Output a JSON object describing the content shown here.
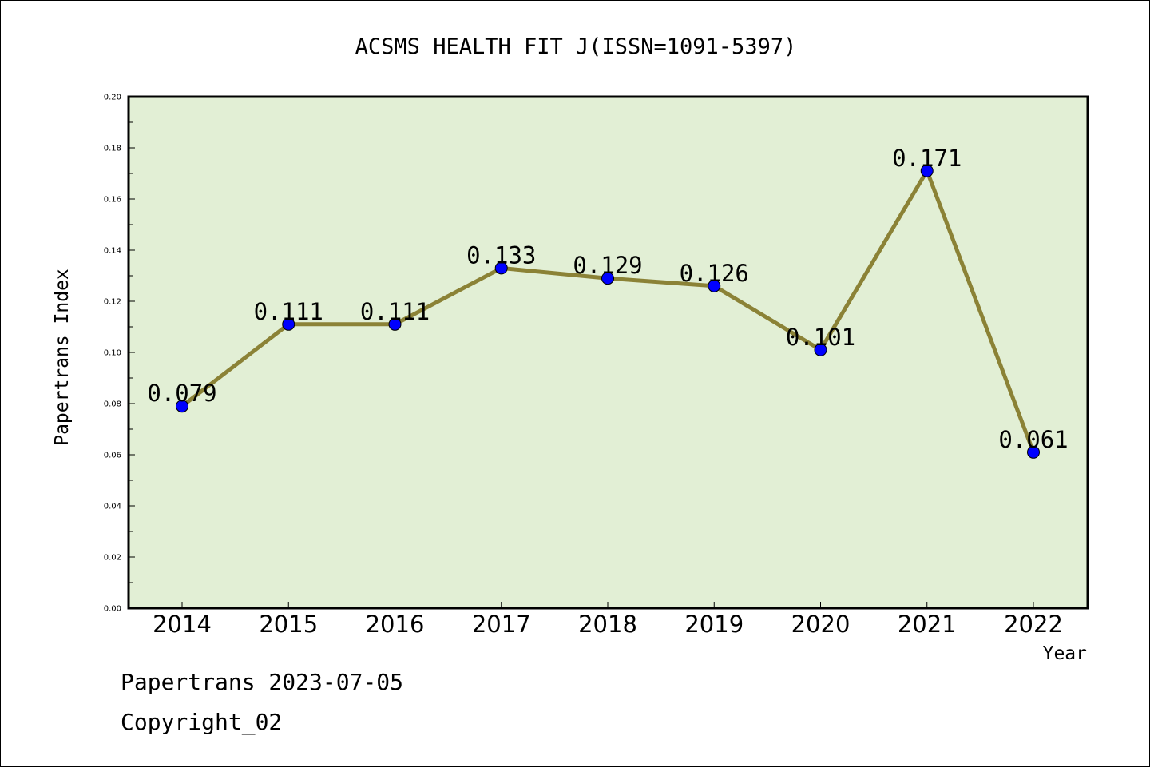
{
  "chart_data": {
    "type": "line",
    "title": "ACSMS HEALTH FIT J(ISSN=1091-5397)",
    "xlabel": "Year",
    "ylabel": "Papertrans Index",
    "categories": [
      "2014",
      "2015",
      "2016",
      "2017",
      "2018",
      "2019",
      "2020",
      "2021",
      "2022"
    ],
    "values": [
      0.079,
      0.111,
      0.111,
      0.133,
      0.129,
      0.126,
      0.101,
      0.171,
      0.061
    ],
    "value_labels": [
      "0.079",
      "0.111",
      "0.111",
      "0.133",
      "0.129",
      "0.126",
      "0.101",
      "0.171",
      "0.061"
    ],
    "ylim": [
      0,
      0.2
    ],
    "yticks": [
      "0.00",
      "0.02",
      "0.04",
      "0.06",
      "0.08",
      "0.10",
      "0.12",
      "0.14",
      "0.16",
      "0.18",
      "0.20"
    ],
    "grid": false,
    "colors": {
      "plot_background": "#e2efd5",
      "line": "#8b8236",
      "marker": "#0000ff"
    }
  },
  "footer": {
    "source": "Papertrans 2023-07-05",
    "copyright": "Copyright_02"
  }
}
